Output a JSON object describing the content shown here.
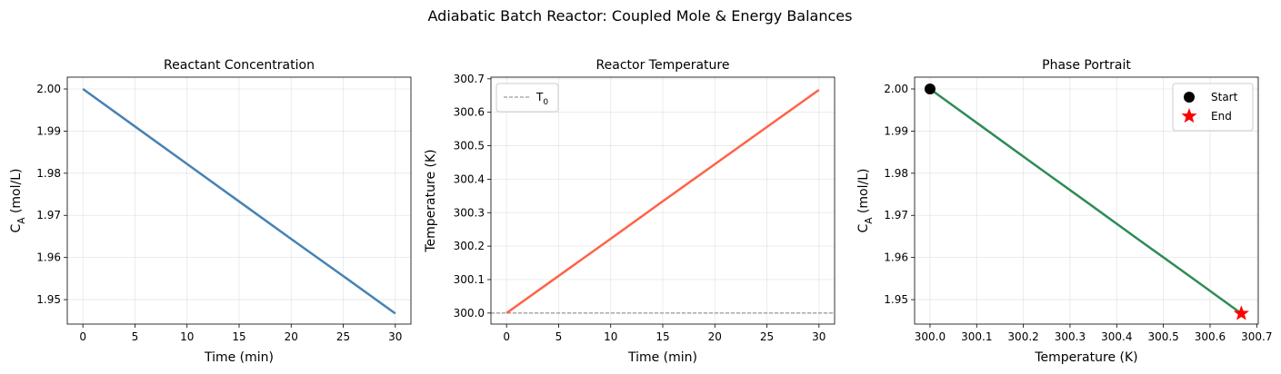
{
  "title": "Adiabatic Batch Reactor: Coupled Mole & Energy Balances",
  "chart_data": [
    {
      "type": "line",
      "title": "Reactant Concentration",
      "xlabel": "Time (min)",
      "ylabel": "C_A (mol/L)",
      "x": [
        0,
        5,
        10,
        15,
        20,
        25,
        30
      ],
      "values": [
        2.0,
        1.9911,
        1.9822,
        1.9733,
        1.9644,
        1.9556,
        1.9467
      ],
      "color": "#4682b4",
      "grid": true,
      "xlim": [
        -1.5,
        31.5
      ],
      "xticks": [
        0,
        5,
        10,
        15,
        20,
        25,
        30
      ],
      "ylim": [
        1.9442,
        2.0028
      ],
      "yticks": [
        1.95,
        1.96,
        1.97,
        1.98,
        1.99,
        {
          "value": 2.0,
          "label": "2.00"
        }
      ]
    },
    {
      "type": "line",
      "title": "Reactor Temperature",
      "xlabel": "Time (min)",
      "ylabel": "Temperature (K)",
      "x": [
        0,
        5,
        10,
        15,
        20,
        25,
        30
      ],
      "values": [
        300.0,
        300.111,
        300.222,
        300.334,
        300.445,
        300.556,
        300.667
      ],
      "color": "#ff6347",
      "grid": true,
      "reference_lines": [
        {
          "name": "T_0",
          "value": 300.0,
          "color": "#808080"
        }
      ],
      "legend": "upper left",
      "xlim": [
        -1.5,
        31.5
      ],
      "xticks": [
        0,
        5,
        10,
        15,
        20,
        25,
        30
      ],
      "ylim": [
        299.967,
        300.705
      ],
      "yticks": [
        {
          "value": 300.0,
          "label": "300.0"
        },
        300.1,
        300.2,
        300.3,
        300.4,
        300.5,
        300.6,
        300.7
      ]
    },
    {
      "type": "line",
      "title": "Phase Portrait",
      "xlabel": "Temperature (K)",
      "ylabel": "C_A (mol/L)",
      "x": [
        300.0,
        300.111,
        300.222,
        300.334,
        300.445,
        300.556,
        300.667
      ],
      "values": [
        2.0,
        1.9911,
        1.9822,
        1.9733,
        1.9644,
        1.9556,
        1.9467
      ],
      "color": "#2e8b57",
      "grid": true,
      "markers": [
        {
          "name": "Start",
          "x": 300.0,
          "y": 2.0,
          "color": "#000000",
          "shape": "circle"
        },
        {
          "name": "End",
          "x": 300.667,
          "y": 1.9467,
          "color": "#ff0000",
          "shape": "star"
        }
      ],
      "legend": "upper right",
      "xlim": [
        299.967,
        300.7033
      ],
      "xticks": [
        {
          "value": 300.0,
          "label": "300.0"
        },
        300.1,
        300.2,
        300.3,
        300.4,
        300.5,
        300.6,
        300.7
      ],
      "ylim": [
        1.9442,
        2.0028
      ],
      "yticks": [
        1.95,
        1.96,
        1.97,
        1.98,
        1.99,
        {
          "value": 2.0,
          "label": "2.00"
        }
      ]
    }
  ]
}
